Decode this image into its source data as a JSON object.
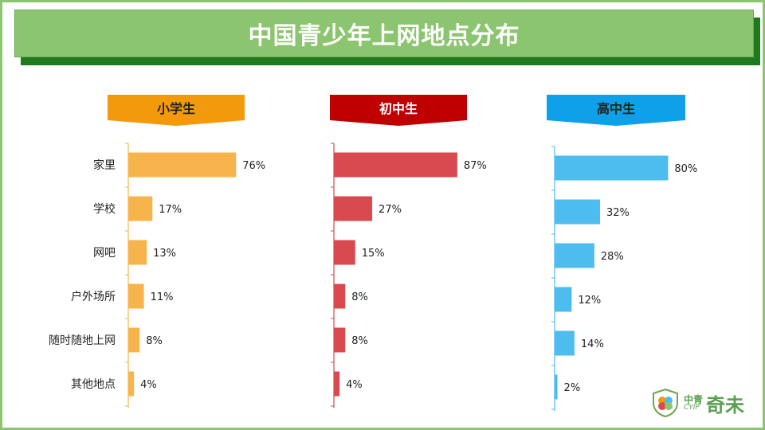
{
  "title": "中国青少年上网地点分布",
  "logo": {
    "small_cn": "中青",
    "small_en": "CYIP",
    "big": "奇未"
  },
  "colors": {
    "primary_school": "#f7b44c",
    "primary_school_header": "#f39a0c",
    "junior_high": "#d84a4f",
    "junior_high_header": "#c00000",
    "senior_high": "#4dbcee",
    "senior_high_header": "#0ea0e8"
  },
  "chart_data": {
    "type": "bar",
    "orientation": "horizontal",
    "categories": [
      "家里",
      "学校",
      "网吧",
      "户外场所",
      "随时随地上网",
      "其他地点"
    ],
    "panels": [
      {
        "title": "小学生",
        "values": [
          76,
          17,
          13,
          11,
          8,
          4
        ],
        "labels": [
          "76%",
          "17%",
          "13%",
          "11%",
          "8%",
          "4%"
        ]
      },
      {
        "title": "初中生",
        "values": [
          87,
          27,
          15,
          8,
          8,
          4
        ],
        "labels": [
          "87%",
          "27%",
          "15%",
          "8%",
          "8%",
          "4%"
        ]
      },
      {
        "title": "高中生",
        "values": [
          80,
          32,
          28,
          12,
          14,
          2
        ],
        "labels": [
          "80%",
          "32%",
          "28%",
          "12%",
          "14%",
          "2%"
        ]
      }
    ]
  }
}
